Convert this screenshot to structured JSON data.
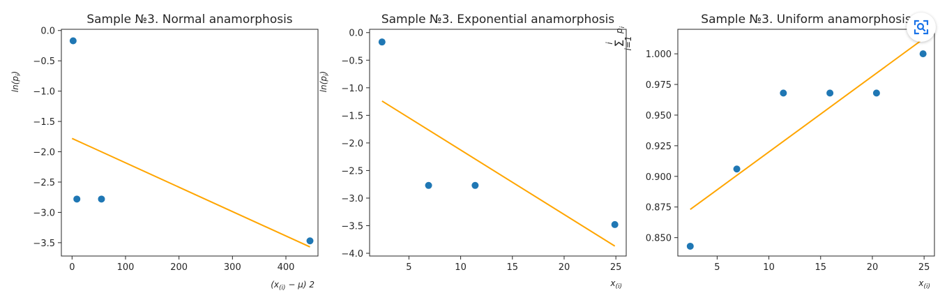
{
  "chart_data": [
    {
      "type": "scatter",
      "title": "Sample №3. Normal anamorphosis",
      "xlabel": "(x_(i) − μ) 2",
      "ylabel": "ln(p_i)",
      "xlim": [
        -20,
        460
      ],
      "ylim": [
        -3.72,
        0.02
      ],
      "xticks": [
        0,
        100,
        200,
        300,
        400
      ],
      "yticks": [
        0.0,
        -0.5,
        -1.0,
        -1.5,
        -2.0,
        -2.5,
        -3.0,
        -3.5
      ],
      "xtick_labels": [
        "0",
        "100",
        "200",
        "300",
        "400"
      ],
      "ytick_labels": [
        "0.0",
        "−0.5",
        "−1.0",
        "−1.5",
        "−2.0",
        "−2.5",
        "−3.0",
        "−3.5"
      ],
      "grid": false,
      "points": [
        {
          "x": 2,
          "y": -0.17
        },
        {
          "x": 9,
          "y": -2.78
        },
        {
          "x": 55,
          "y": -2.78
        },
        {
          "x": 445,
          "y": -3.47
        }
      ],
      "fit_line": {
        "x": [
          0,
          445
        ],
        "y": [
          -1.78,
          -3.57
        ]
      },
      "colors": {
        "points": "#1f77b4",
        "line": "#ffa500"
      }
    },
    {
      "type": "scatter",
      "title": "Sample №3. Exponential anamorphosis",
      "xlabel": "x_(i)",
      "ylabel": "ln(p_i)",
      "xlim": [
        1.2,
        26.0
      ],
      "ylim": [
        -4.05,
        0.06
      ],
      "xticks": [
        5,
        10,
        15,
        20,
        25
      ],
      "yticks": [
        0.0,
        -0.5,
        -1.0,
        -1.5,
        -2.0,
        -2.5,
        -3.0,
        -3.5,
        -4.0
      ],
      "xtick_labels": [
        "5",
        "10",
        "15",
        "20",
        "25"
      ],
      "ytick_labels": [
        "0.0",
        "−0.5",
        "−1.0",
        "−1.5",
        "−2.0",
        "−2.5",
        "−3.0",
        "−3.5",
        "−4.0"
      ],
      "grid": false,
      "points": [
        {
          "x": 2.4,
          "y": -0.17
        },
        {
          "x": 6.9,
          "y": -2.77
        },
        {
          "x": 11.4,
          "y": -2.77
        },
        {
          "x": 24.9,
          "y": -3.48
        }
      ],
      "fit_line": {
        "x": [
          2.4,
          24.9
        ],
        "y": [
          -1.24,
          -3.87
        ]
      },
      "colors": {
        "points": "#1f77b4",
        "line": "#ffa500"
      }
    },
    {
      "type": "scatter",
      "title": "Sample №3. Uniform anamorphosis",
      "xlabel": "x_(i)",
      "ylabel": "Σ_{i=1}^{i} p_i",
      "xlim": [
        1.2,
        26.0
      ],
      "ylim": [
        0.835,
        1.02
      ],
      "xticks": [
        5,
        10,
        15,
        20,
        25
      ],
      "yticks": [
        0.85,
        0.875,
        0.9,
        0.925,
        0.95,
        0.975,
        1.0
      ],
      "xtick_labels": [
        "5",
        "10",
        "15",
        "20",
        "25"
      ],
      "ytick_labels": [
        "0.850",
        "0.875",
        "0.900",
        "0.925",
        "0.950",
        "0.975",
        "1.000"
      ],
      "grid": false,
      "points": [
        {
          "x": 2.4,
          "y": 0.843
        },
        {
          "x": 6.9,
          "y": 0.906
        },
        {
          "x": 11.4,
          "y": 0.968
        },
        {
          "x": 15.9,
          "y": 0.968
        },
        {
          "x": 20.4,
          "y": 0.968
        },
        {
          "x": 24.9,
          "y": 1.0
        }
      ],
      "fit_line": {
        "x": [
          2.4,
          24.9
        ],
        "y": [
          0.873,
          1.012
        ]
      },
      "colors": {
        "points": "#1f77b4",
        "line": "#ffa500"
      }
    }
  ],
  "overlay": {
    "icon": "lens-search-icon"
  }
}
